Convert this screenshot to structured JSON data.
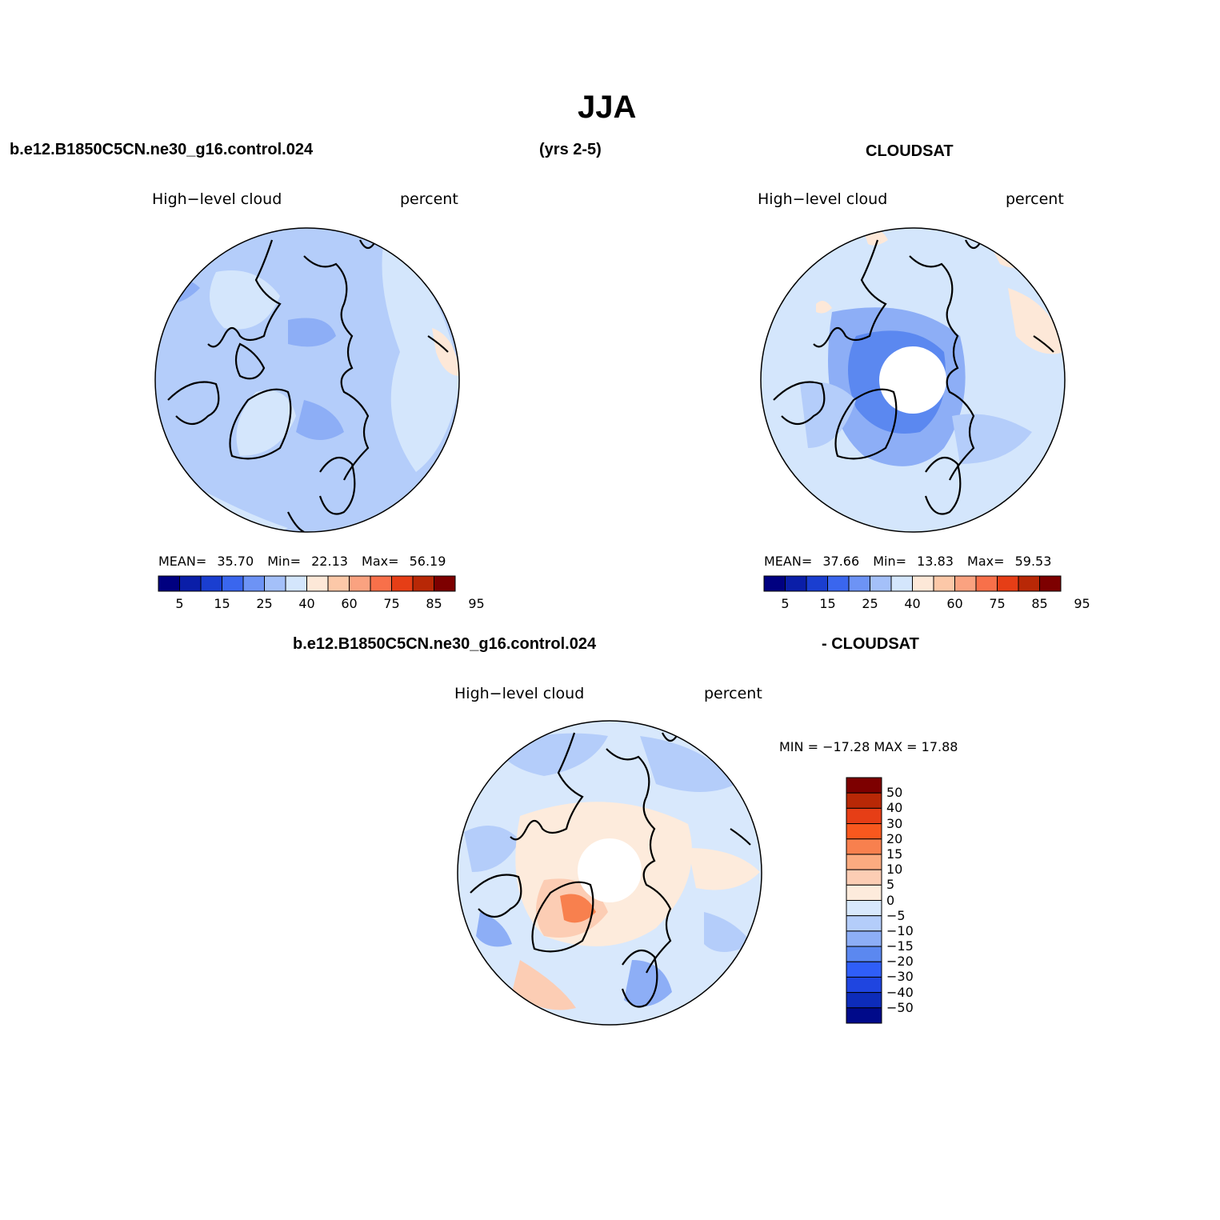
{
  "page": {
    "title": "JJA",
    "case_name": "b.e12.B1850C5CN.ne30_g16.control.024",
    "years": "(yrs 2-5)",
    "obs_name": "CLOUDSAT",
    "diff_case_name": "b.e12.B1850C5CN.ne30_g16.control.024",
    "diff_obs_name": "- CLOUDSAT"
  },
  "colors": {
    "full_scale": [
      "#000080",
      "#0a1ea8",
      "#1a3ed0",
      "#3a66ee",
      "#6d93f5",
      "#a4c0f9",
      "#d4e6fc",
      "#fde8d8",
      "#fcc8a8",
      "#faa280",
      "#f8704a",
      "#e63e16",
      "#b82806",
      "#7d0000"
    ],
    "diff_scale": [
      "#7d0000",
      "#b82806",
      "#e63e16",
      "#f8581e",
      "#f8804e",
      "#fbab80",
      "#fccdb4",
      "#fdebdc",
      "#d8e8fc",
      "#b4cdfa",
      "#8daef6",
      "#5b88f0",
      "#2f5ef8",
      "#1f45e0",
      "#0d2cba",
      "#000a8a"
    ]
  },
  "panels": [
    {
      "id": "model",
      "variable_label": "High−level cloud",
      "units_label": "percent",
      "stats": {
        "mean_label": "MEAN=",
        "mean": "35.70",
        "min_label": "Min=",
        "min": "22.13",
        "max_label": "Max=",
        "max": "56.19"
      },
      "colorbar_ticks": [
        "5",
        "15",
        "25",
        "40",
        "60",
        "75",
        "85",
        "95"
      ]
    },
    {
      "id": "obs",
      "variable_label": "High−level cloud",
      "units_label": "percent",
      "stats": {
        "mean_label": "MEAN=",
        "mean": "37.66",
        "min_label": "Min=",
        "min": "13.83",
        "max_label": "Max=",
        "max": "59.53"
      },
      "colorbar_ticks": [
        "5",
        "15",
        "25",
        "40",
        "60",
        "75",
        "85",
        "95"
      ]
    },
    {
      "id": "diff",
      "variable_label": "High−level cloud",
      "units_label": "percent",
      "minmax_text": "MIN = −17.28 MAX =  17.88",
      "colorbar_ticks": [
        "50",
        "40",
        "30",
        "20",
        "15",
        "10",
        "5",
        "0",
        "−5",
        "−10",
        "−15",
        "−20",
        "−30",
        "−40",
        "−50"
      ]
    }
  ]
}
